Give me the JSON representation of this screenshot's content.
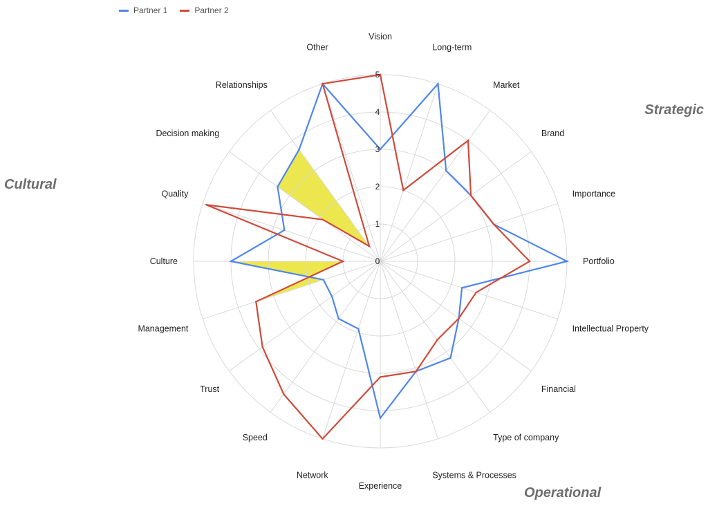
{
  "legend": [
    {
      "label": "Partner 1",
      "color": "#4f86ec"
    },
    {
      "label": "Partner 2",
      "color": "#d04a3a"
    }
  ],
  "group_labels": {
    "strategic": "Strategic",
    "cultural": "Cultural",
    "operational": "Operational"
  },
  "chart_data": {
    "type": "radar",
    "categories": [
      "Vision",
      "Long-term",
      "Market",
      "Brand",
      "Importance",
      "Portfolio",
      "Intellectual Property",
      "Financial",
      "Type of company",
      "Systems & Processes",
      "Experience",
      "Network",
      "Speed",
      "Trust",
      "Management",
      "Culture",
      "Quality",
      "Decision making",
      "Relationships",
      "Other"
    ],
    "series": [
      {
        "name": "Partner 1",
        "color": "#4f86ec",
        "values": [
          3,
          5,
          3,
          3,
          3.2,
          5,
          2.3,
          2.6,
          3.2,
          3.1,
          4.2,
          1.9,
          1.9,
          1.6,
          1.6,
          4,
          2.7,
          3.4,
          3.7,
          5
        ]
      },
      {
        "name": "Partner 2",
        "color": "#d04a3a",
        "values": [
          5,
          2,
          4,
          3,
          3.2,
          4,
          2.7,
          2.6,
          2.6,
          3.1,
          3.1,
          5,
          4.4,
          3.9,
          3.5,
          1,
          4.9,
          1.9,
          0.5,
          5
        ]
      }
    ],
    "highlights": [
      {
        "categories": [
          "Culture",
          "Management"
        ],
        "color": "#ece74f"
      },
      {
        "categories": [
          "Decision making",
          "Relationships"
        ],
        "color": "#ece74f"
      }
    ],
    "ticks": [
      "0",
      "1",
      "2",
      "3",
      "4",
      "5"
    ],
    "rmax": 5,
    "grid": true,
    "legend_position": "top-left"
  }
}
